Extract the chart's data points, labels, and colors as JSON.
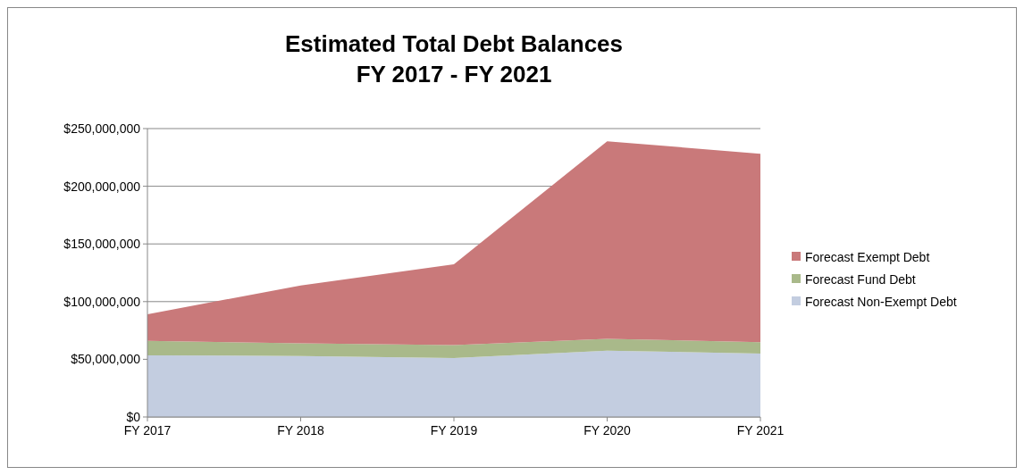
{
  "chart_data": {
    "type": "area",
    "stacked": true,
    "title": "Estimated Total Debt Balances\nFY 2017 - FY 2021",
    "categories": [
      "FY 2017",
      "FY 2018",
      "FY 2019",
      "FY 2020",
      "FY 2021"
    ],
    "series": [
      {
        "name": "Forecast Non-Exempt Debt",
        "color": "#c3cde0",
        "values": [
          53500000,
          52800000,
          51000000,
          57400000,
          55000000
        ]
      },
      {
        "name": "Forecast Fund Debt",
        "color": "#a9b98a",
        "values": [
          12500000,
          11000000,
          11400000,
          10300000,
          9900000
        ]
      },
      {
        "name": "Forecast Exempt Debt",
        "color": "#c9797a",
        "values": [
          23000000,
          50200000,
          70000000,
          171300000,
          163300000
        ]
      }
    ],
    "ylim": [
      0,
      250000000
    ],
    "yticks": [
      {
        "value": 0,
        "label": "$0"
      },
      {
        "value": 50000000,
        "label": "$50,000,000"
      },
      {
        "value": 100000000,
        "label": "$100,000,000"
      },
      {
        "value": 150000000,
        "label": "$150,000,000"
      },
      {
        "value": 200000000,
        "label": "$200,000,000"
      },
      {
        "value": 250000000,
        "label": "$250,000,000"
      }
    ],
    "grid": "y",
    "legend": "right"
  }
}
